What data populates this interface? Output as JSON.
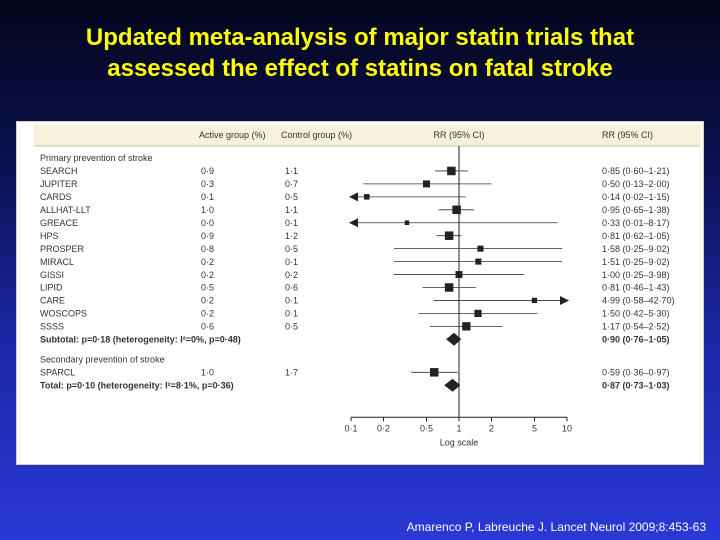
{
  "slide": {
    "title_line1": "Updated meta-analysis of major statin trials that",
    "title_line2": "assessed the effect of statins on fatal stroke",
    "citation": "Amarenco P, Labreuche J. Lancet Neurol 2009;8:453-63"
  },
  "colors": {
    "title": "#ffff00",
    "heading_bg": "#f5f1dc",
    "text": "#333333",
    "marker": "#222222"
  },
  "chart_data": {
    "type": "forest",
    "scale": "log",
    "xlabel": "Log scale",
    "xlim": [
      0.1,
      10
    ],
    "xticks": [
      0.1,
      0.2,
      0.5,
      1,
      2,
      5,
      10
    ],
    "xtick_labels": [
      "0·1",
      "0·2",
      "0·5",
      "1",
      "2",
      "5",
      "10"
    ],
    "headers": {
      "active": "Active group (%)",
      "control": "Control group (%)",
      "rr_plot": "RR (95% CI)",
      "rr_text": "RR (95% CI)"
    },
    "rows": [
      {
        "kind": "heading",
        "label": "Primary prevention of stroke"
      },
      {
        "kind": "study",
        "label": "SEARCH",
        "active": "0·9",
        "control": "1·1",
        "rr": 0.85,
        "lo": 0.6,
        "hi": 1.21,
        "rr_text": "0·85 (0·60–1·21)"
      },
      {
        "kind": "study",
        "label": "JUPITER",
        "active": "0·3",
        "control": "0·7",
        "rr": 0.5,
        "lo": 0.13,
        "hi": 2.0,
        "rr_text": "0·50 (0·13–2·00)"
      },
      {
        "kind": "study",
        "label": "CARDS",
        "active": "0·1",
        "control": "0·5",
        "rr": 0.14,
        "lo": 0.02,
        "hi": 1.15,
        "rr_text": "0·14 (0·02–1·15)"
      },
      {
        "kind": "study",
        "label": "ALLHAT-LLT",
        "active": "1·0",
        "control": "1·1",
        "rr": 0.95,
        "lo": 0.65,
        "hi": 1.38,
        "rr_text": "0·95 (0·65–1·38)"
      },
      {
        "kind": "study",
        "label": "GREACE",
        "active": "0·0",
        "control": "0·1",
        "rr": 0.33,
        "lo": 0.01,
        "hi": 8.17,
        "rr_text": "0·33 (0·01–8·17)"
      },
      {
        "kind": "study",
        "label": "HPS",
        "active": "0·9",
        "control": "1·2",
        "rr": 0.81,
        "lo": 0.62,
        "hi": 1.05,
        "rr_text": "0·81 (0·62–1·05)"
      },
      {
        "kind": "study",
        "label": "PROSPER",
        "active": "0·8",
        "control": "0·5",
        "rr": 1.58,
        "lo": 0.25,
        "hi": 9.02,
        "rr_text": "1·58 (0·25–9·02)"
      },
      {
        "kind": "study",
        "label": "MIRACL",
        "active": "0·2",
        "control": "0·1",
        "rr": 1.51,
        "lo": 0.25,
        "hi": 9.02,
        "rr_text": "1·51 (0·25–9·02)"
      },
      {
        "kind": "study",
        "label": "GISSI",
        "active": "0·2",
        "control": "0·2",
        "rr": 1.0,
        "lo": 0.25,
        "hi": 3.98,
        "rr_text": "1·00 (0·25–3·98)"
      },
      {
        "kind": "study",
        "label": "LIPID",
        "active": "0·5",
        "control": "0·6",
        "rr": 0.81,
        "lo": 0.46,
        "hi": 1.43,
        "rr_text": "0·81 (0·46–1·43)"
      },
      {
        "kind": "study",
        "label": "CARE",
        "active": "0·2",
        "control": "0·1",
        "rr": 4.99,
        "lo": 0.58,
        "hi": 42.7,
        "rr_text": "4·99 (0·58–42·70)"
      },
      {
        "kind": "study",
        "label": "WOSCOPS",
        "active": "0·2",
        "control": "0·1",
        "rr": 1.5,
        "lo": 0.42,
        "hi": 5.3,
        "rr_text": "1·50 (0·42–5·30)"
      },
      {
        "kind": "study",
        "label": "SSSS",
        "active": "0·6",
        "control": "0·5",
        "rr": 1.17,
        "lo": 0.54,
        "hi": 2.52,
        "rr_text": "1·17 (0·54–2·52)"
      },
      {
        "kind": "summary",
        "label": "Subtotal: p=0·18 (heterogeneity: I²=0%, p=0·48)",
        "rr": 0.9,
        "lo": 0.76,
        "hi": 1.05,
        "rr_text": "0·90 (0·76–1·05)"
      },
      {
        "kind": "gap"
      },
      {
        "kind": "heading",
        "label": "Secondary prevention of stroke"
      },
      {
        "kind": "study",
        "label": "SPARCL",
        "active": "1·0",
        "control": "1·7",
        "rr": 0.59,
        "lo": 0.36,
        "hi": 0.97,
        "rr_text": "0·59 (0·36–0·97)"
      },
      {
        "kind": "summary",
        "label": "Total: p=0·10 (heterogeneity: I²=8·1%, p=0·36)",
        "rr": 0.87,
        "lo": 0.73,
        "hi": 1.03,
        "rr_text": "0·87 (0·73–1·03)"
      }
    ]
  }
}
